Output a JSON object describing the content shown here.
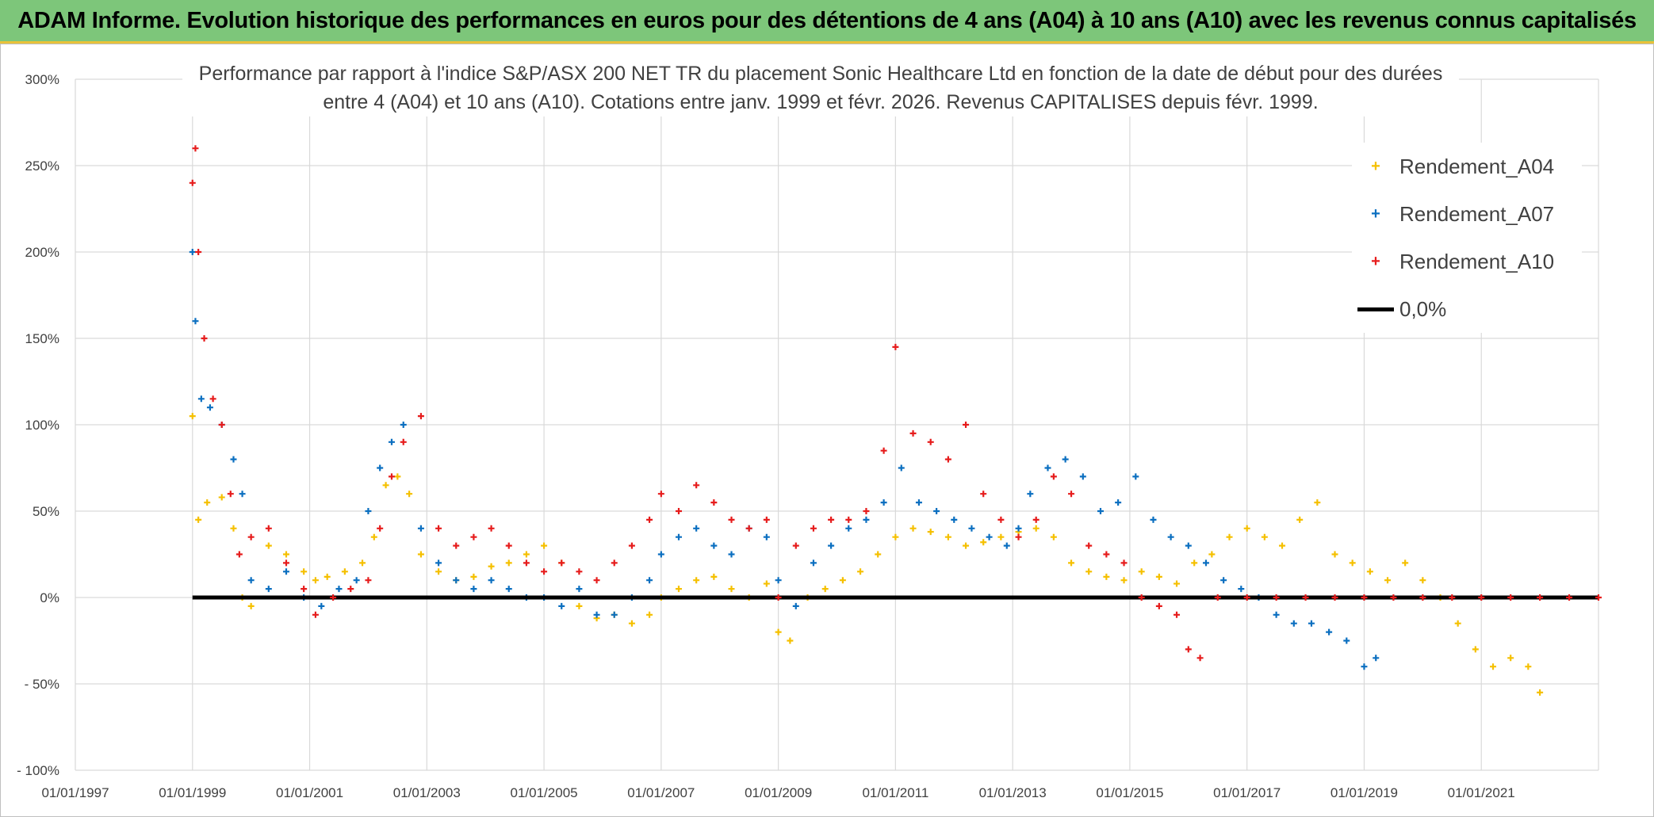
{
  "banner_title": "ADAM Informe. Evolution historique des performances en euros pour des détentions de 4 ans (A04) à 10 ans (A10) avec les revenus connus capitalisés",
  "colors": {
    "banner": "#7dc67a",
    "a04": "#f5c000",
    "a07": "#0b6fc0",
    "a10": "#e61c1c",
    "zero": "#000000"
  },
  "chart_data": {
    "type": "scatter",
    "title_line1": "Performance par rapport à l'indice S&P/ASX 200 NET TR  du placement Sonic Healthcare Ltd en fonction de la date de début pour des durées",
    "title_line2": "entre 4 (A04) et 10 ans (A10). Cotations entre janv. 1999 et févr. 2026. Revenus CAPITALISES depuis févr. 1999.",
    "x_ticks": [
      "01/01/1997",
      "01/01/1999",
      "01/01/2001",
      "01/01/2003",
      "01/01/2005",
      "01/01/2007",
      "01/01/2009",
      "01/01/2011",
      "01/01/2013",
      "01/01/2015",
      "01/01/2017",
      "01/01/2019",
      "01/01/2021"
    ],
    "x_range": [
      1997.0,
      2023.0
    ],
    "y_ticks": [
      "300%",
      "250%",
      "200%",
      "150%",
      "100%",
      "50%",
      "0%",
      "- 50%",
      "- 100%"
    ],
    "y_range": [
      -100,
      300
    ],
    "legend": [
      {
        "label": "Rendement_A04",
        "marker": "+"
      },
      {
        "label": "Rendement_A07",
        "marker": "+"
      },
      {
        "label": "Rendement_A10",
        "marker": "+"
      },
      {
        "label": "0,0%",
        "marker": "line"
      }
    ],
    "series": [
      {
        "name": "Rendement_A04",
        "x": [
          1999.0,
          1999.1,
          1999.25,
          1999.5,
          1999.7,
          1999.85,
          2000.0,
          2000.3,
          2000.6,
          2000.9,
          2001.1,
          2001.3,
          2001.6,
          2001.9,
          2002.1,
          2002.3,
          2002.5,
          2002.7,
          2002.9,
          2003.2,
          2003.5,
          2003.8,
          2004.1,
          2004.4,
          2004.7,
          2005.0,
          2005.3,
          2005.6,
          2005.9,
          2006.2,
          2006.5,
          2006.8,
          2007.0,
          2007.3,
          2007.6,
          2007.9,
          2008.2,
          2008.5,
          2008.8,
          2009.0,
          2009.2,
          2009.5,
          2009.8,
          2010.1,
          2010.4,
          2010.7,
          2011.0,
          2011.3,
          2011.6,
          2011.9,
          2012.2,
          2012.5,
          2012.8,
          2013.1,
          2013.4,
          2013.7,
          2014.0,
          2014.3,
          2014.6,
          2014.9,
          2015.2,
          2015.5,
          2015.8,
          2016.1,
          2016.4,
          2016.7,
          2017.0,
          2017.3,
          2017.6,
          2017.9,
          2018.2,
          2018.5,
          2018.8,
          2019.1,
          2019.4,
          2019.7,
          2020.0,
          2020.3,
          2020.6,
          2020.9,
          2021.2,
          2021.5,
          2021.8,
          2022.0
        ],
        "y": [
          105,
          45,
          55,
          58,
          40,
          0,
          -5,
          30,
          25,
          15,
          10,
          12,
          15,
          20,
          35,
          65,
          70,
          60,
          25,
          15,
          10,
          12,
          18,
          20,
          25,
          30,
          20,
          -5,
          -12,
          -10,
          -15,
          -10,
          0,
          5,
          10,
          12,
          5,
          0,
          8,
          -20,
          -25,
          0,
          5,
          10,
          15,
          25,
          35,
          40,
          38,
          35,
          30,
          32,
          35,
          38,
          40,
          35,
          20,
          15,
          12,
          10,
          15,
          12,
          8,
          20,
          25,
          35,
          40,
          35,
          30,
          45,
          55,
          25,
          20,
          15,
          10,
          20,
          10,
          0,
          -15,
          -30,
          -40,
          -35,
          -40,
          -55
        ]
      },
      {
        "name": "Rendement_A07",
        "x": [
          1999.0,
          1999.05,
          1999.15,
          1999.3,
          1999.5,
          1999.7,
          1999.85,
          2000.0,
          2000.3,
          2000.6,
          2000.9,
          2001.2,
          2001.5,
          2001.8,
          2002.0,
          2002.2,
          2002.4,
          2002.6,
          2002.9,
          2003.2,
          2003.5,
          2003.8,
          2004.1,
          2004.4,
          2004.7,
          2005.0,
          2005.3,
          2005.6,
          2005.9,
          2006.2,
          2006.5,
          2006.8,
          2007.0,
          2007.3,
          2007.6,
          2007.9,
          2008.2,
          2008.5,
          2008.8,
          2009.0,
          2009.3,
          2009.6,
          2009.9,
          2010.2,
          2010.5,
          2010.8,
          2011.1,
          2011.4,
          2011.7,
          2012.0,
          2012.3,
          2012.6,
          2012.9,
          2013.1,
          2013.3,
          2013.6,
          2013.9,
          2014.2,
          2014.5,
          2014.8,
          2015.1,
          2015.4,
          2015.7,
          2016.0,
          2016.3,
          2016.6,
          2016.9,
          2017.2,
          2017.5,
          2017.8,
          2018.1,
          2018.4,
          2018.7,
          2019.0,
          2019.2
        ],
        "y": [
          200,
          160,
          115,
          110,
          100,
          80,
          60,
          10,
          5,
          15,
          0,
          -5,
          5,
          10,
          50,
          75,
          90,
          100,
          40,
          20,
          10,
          5,
          10,
          5,
          0,
          0,
          -5,
          5,
          -10,
          -10,
          0,
          10,
          25,
          35,
          40,
          30,
          25,
          40,
          35,
          10,
          -5,
          20,
          30,
          40,
          45,
          55,
          75,
          55,
          50,
          45,
          40,
          35,
          30,
          40,
          60,
          75,
          80,
          70,
          50,
          55,
          70,
          45,
          35,
          30,
          20,
          10,
          5,
          0,
          -10,
          -15,
          -15,
          -20,
          -25,
          -40,
          -35
        ]
      },
      {
        "name": "Rendement_A10",
        "x": [
          1999.0,
          1999.05,
          1999.1,
          1999.2,
          1999.35,
          1999.5,
          1999.65,
          1999.8,
          2000.0,
          2000.3,
          2000.6,
          2000.9,
          2001.1,
          2001.4,
          2001.7,
          2002.0,
          2002.2,
          2002.4,
          2002.6,
          2002.9,
          2003.2,
          2003.5,
          2003.8,
          2004.1,
          2004.4,
          2004.7,
          2005.0,
          2005.3,
          2005.6,
          2005.9,
          2006.2,
          2006.5,
          2006.8,
          2007.0,
          2007.3,
          2007.6,
          2007.9,
          2008.2,
          2008.5,
          2008.8,
          2009.0,
          2009.3,
          2009.6,
          2009.9,
          2010.2,
          2010.5,
          2010.8,
          2011.0,
          2011.3,
          2011.6,
          2011.9,
          2012.2,
          2012.5,
          2012.8,
          2013.1,
          2013.4,
          2013.7,
          2014.0,
          2014.3,
          2014.6,
          2014.9,
          2015.2,
          2015.5,
          2015.8,
          2016.0,
          2016.2,
          2016.5,
          2017.0,
          2017.5,
          2018.0,
          2018.5,
          2019.0,
          2019.5,
          2020.0,
          2020.5,
          2021.0,
          2021.5,
          2022.0,
          2022.5,
          2023.0
        ],
        "y": [
          240,
          260,
          200,
          150,
          115,
          100,
          60,
          25,
          35,
          40,
          20,
          5,
          -10,
          0,
          5,
          10,
          40,
          70,
          90,
          105,
          40,
          30,
          35,
          40,
          30,
          20,
          15,
          20,
          15,
          10,
          20,
          30,
          45,
          60,
          50,
          65,
          55,
          45,
          40,
          45,
          0,
          30,
          40,
          45,
          45,
          50,
          85,
          145,
          95,
          90,
          80,
          100,
          60,
          45,
          35,
          45,
          70,
          60,
          30,
          25,
          20,
          0,
          -5,
          -10,
          -30,
          -35,
          0,
          0,
          0,
          0,
          0,
          0,
          0,
          0,
          0,
          0,
          0,
          0,
          0,
          0
        ]
      }
    ],
    "zero_line": {
      "label": "0,0%",
      "value": 0,
      "x_from": 1999.0,
      "x_to": 2023.0
    }
  }
}
